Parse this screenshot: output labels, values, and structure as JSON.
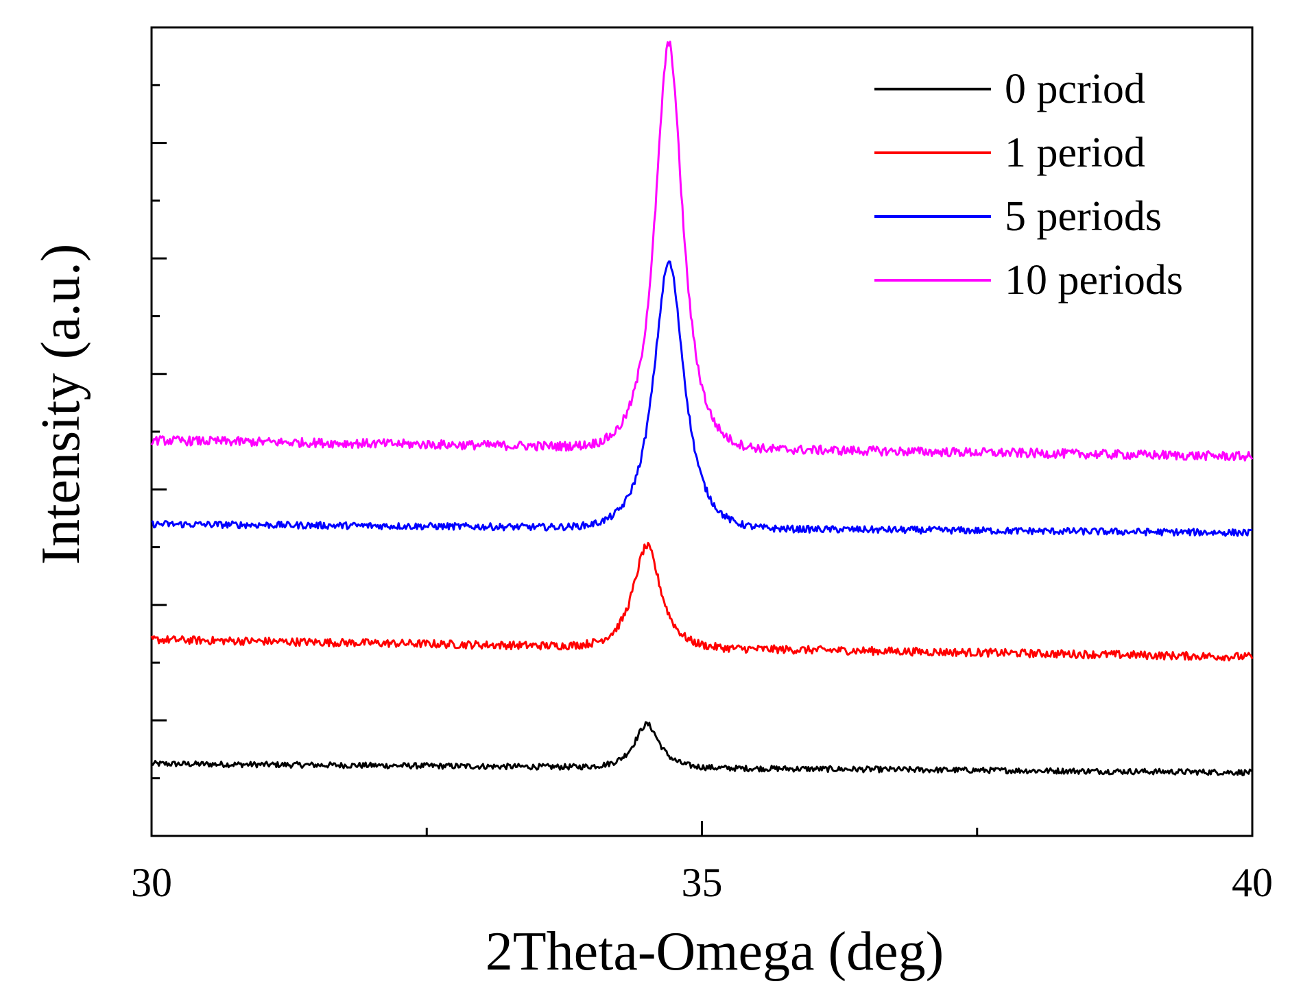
{
  "chart_data": {
    "type": "line",
    "title": "",
    "xlabel": "2Theta-Omega (deg)",
    "ylabel": "Intensity (a.u.)",
    "xlim": [
      30,
      40
    ],
    "ylim": [
      0,
      14
    ],
    "x_ticks": [
      30,
      35,
      40
    ],
    "x_minor_ticks": [
      32.5,
      37.5
    ],
    "y_ticks": [
      1,
      2,
      3,
      4,
      5,
      6,
      7,
      8,
      9,
      10,
      11,
      12,
      13
    ],
    "y_tick_labels_visible": false,
    "grid": false,
    "legend_position": "top-right",
    "series": [
      {
        "name": "0 pcriod",
        "color": "#000000",
        "baseline": 1.25,
        "baseline_slope": -0.015,
        "peak_center": 34.5,
        "peak_height": 0.75,
        "peak_width": 0.18,
        "noise": 0.05
      },
      {
        "name": "1 period",
        "color": "#ff0000",
        "baseline": 3.4,
        "baseline_slope": -0.03,
        "peak_center": 34.5,
        "peak_height": 1.75,
        "peak_width": 0.2,
        "noise": 0.07
      },
      {
        "name": "5 periods",
        "color": "#0000ff",
        "baseline": 5.4,
        "baseline_slope": -0.015,
        "peak_center": 34.7,
        "peak_height": 4.6,
        "peak_width": 0.22,
        "noise": 0.06
      },
      {
        "name": "10 periods",
        "color": "#ff00ff",
        "baseline": 6.85,
        "baseline_slope": -0.028,
        "peak_center": 34.7,
        "peak_height": 7.0,
        "peak_width": 0.2,
        "noise": 0.08
      }
    ]
  }
}
